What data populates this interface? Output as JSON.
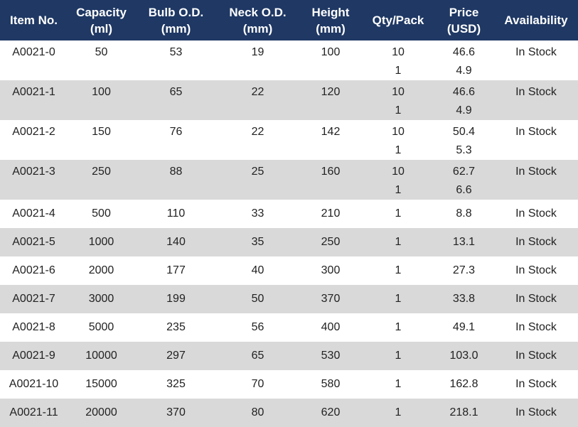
{
  "headers": [
    {
      "l1": "Item No.",
      "l2": ""
    },
    {
      "l1": "Capacity",
      "l2": "(ml)"
    },
    {
      "l1": "Bulb O.D.",
      "l2": "(mm)"
    },
    {
      "l1": "Neck O.D.",
      "l2": "(mm)"
    },
    {
      "l1": "Height",
      "l2": "(mm)"
    },
    {
      "l1": "Qty/Pack",
      "l2": ""
    },
    {
      "l1": "Price",
      "l2": "(USD)"
    },
    {
      "l1": "Availability",
      "l2": ""
    }
  ],
  "rows": [
    {
      "item": "A0021-0",
      "capacity": "50",
      "bulb": "53",
      "neck": "19",
      "height": "100",
      "qty": [
        "10",
        "1"
      ],
      "price": [
        "46.6",
        "4.9"
      ],
      "avail": "In Stock"
    },
    {
      "item": "A0021-1",
      "capacity": "100",
      "bulb": "65",
      "neck": "22",
      "height": "120",
      "qty": [
        "10",
        "1"
      ],
      "price": [
        "46.6",
        "4.9"
      ],
      "avail": "In Stock"
    },
    {
      "item": "A0021-2",
      "capacity": "150",
      "bulb": "76",
      "neck": "22",
      "height": "142",
      "qty": [
        "10",
        "1"
      ],
      "price": [
        "50.4",
        "5.3"
      ],
      "avail": "In Stock"
    },
    {
      "item": "A0021-3",
      "capacity": "250",
      "bulb": "88",
      "neck": "25",
      "height": "160",
      "qty": [
        "10",
        "1"
      ],
      "price": [
        "62.7",
        "6.6"
      ],
      "avail": "In Stock"
    },
    {
      "item": "A0021-4",
      "capacity": "500",
      "bulb": "110",
      "neck": "33",
      "height": "210",
      "qty": [
        "1"
      ],
      "price": [
        "8.8"
      ],
      "avail": "In Stock"
    },
    {
      "item": "A0021-5",
      "capacity": "1000",
      "bulb": "140",
      "neck": "35",
      "height": "250",
      "qty": [
        "1"
      ],
      "price": [
        "13.1"
      ],
      "avail": "In Stock"
    },
    {
      "item": "A0021-6",
      "capacity": "2000",
      "bulb": "177",
      "neck": "40",
      "height": "300",
      "qty": [
        "1"
      ],
      "price": [
        "27.3"
      ],
      "avail": "In Stock"
    },
    {
      "item": "A0021-7",
      "capacity": "3000",
      "bulb": "199",
      "neck": "50",
      "height": "370",
      "qty": [
        "1"
      ],
      "price": [
        "33.8"
      ],
      "avail": "In Stock"
    },
    {
      "item": "A0021-8",
      "capacity": "5000",
      "bulb": "235",
      "neck": "56",
      "height": "400",
      "qty": [
        "1"
      ],
      "price": [
        "49.1"
      ],
      "avail": "In Stock"
    },
    {
      "item": "A0021-9",
      "capacity": "10000",
      "bulb": "297",
      "neck": "65",
      "height": "530",
      "qty": [
        "1"
      ],
      "price": [
        "103.0"
      ],
      "avail": "In Stock"
    },
    {
      "item": "A0021-10",
      "capacity": "15000",
      "bulb": "325",
      "neck": "70",
      "height": "580",
      "qty": [
        "1"
      ],
      "price": [
        "162.8"
      ],
      "avail": "In Stock"
    },
    {
      "item": "A0021-11",
      "capacity": "20000",
      "bulb": "370",
      "neck": "80",
      "height": "620",
      "qty": [
        "1"
      ],
      "price": [
        "218.1"
      ],
      "avail": "In Stock"
    }
  ]
}
